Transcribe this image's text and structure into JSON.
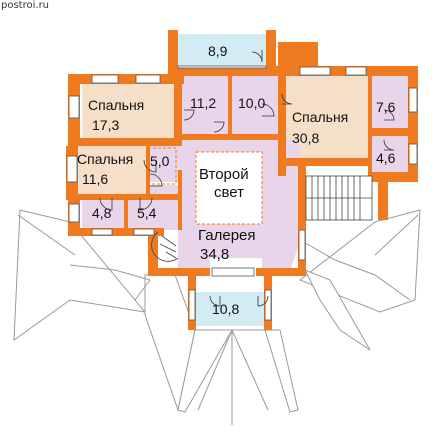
{
  "watermark": "postroi.ru",
  "rooms": {
    "bedroom_left": {
      "name": "Спальня",
      "area": "17,3"
    },
    "bedroom_small": {
      "name": "Спальня",
      "area": "11,6"
    },
    "bedroom_big": {
      "name": "Спальня",
      "area": "30,8"
    },
    "top_balcony": {
      "area": "8,9"
    },
    "bath_1": {
      "area": "11,2"
    },
    "bath_2": {
      "area": "10,0"
    },
    "room_76": {
      "area": "7,6"
    },
    "room_46": {
      "area": "4,6"
    },
    "closet_50": {
      "area": "5,0"
    },
    "room_48": {
      "area": "4,8"
    },
    "room_54": {
      "area": "5,4"
    },
    "void": {
      "line1": "Второй",
      "line2": "свет"
    },
    "gallery": {
      "name": "Галерея",
      "area": "34,8"
    },
    "bottom_balcony": {
      "area": "10,8"
    }
  },
  "colors": {
    "wall": "#f07a1f",
    "wall_dark": "#d8651a",
    "bedroom": "#f6dfc8",
    "gallery": "#e8d5ea",
    "balcony": "#d3ecf3",
    "void": "#ffffff",
    "roof_line": "#9a9a9a"
  }
}
